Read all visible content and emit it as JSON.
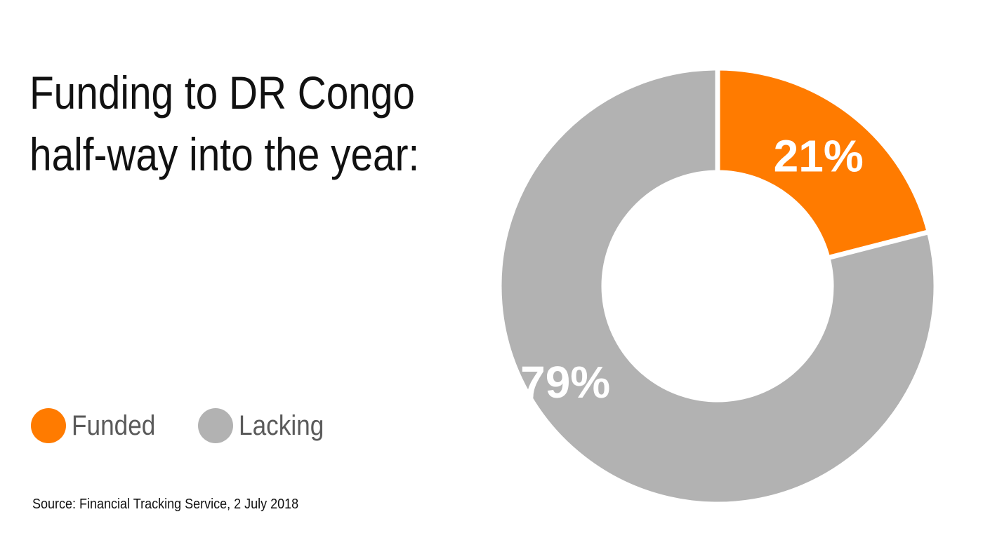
{
  "title": {
    "line1": "Funding to DR Congo",
    "line2": "half-way into the year:"
  },
  "source": "Source: Financial Tracking Service, 2 July 2018",
  "colors": {
    "funded": "#ff7b00",
    "lacking": "#b2b2b2",
    "background": "#ffffff"
  },
  "chart_data": {
    "type": "pie",
    "style": "donut",
    "title": "Funding to DR Congo half-way into the year:",
    "slices": [
      {
        "label": "Funded",
        "value": 21,
        "display": "21%",
        "color": "#ff7b00"
      },
      {
        "label": "Lacking",
        "value": 79,
        "display": "79%",
        "color": "#b2b2b2"
      }
    ],
    "legend": {
      "placement": "bottom-left",
      "entries": [
        "Funded",
        "Lacking"
      ]
    },
    "source": "Source: Financial Tracking Service, 2 July 2018"
  }
}
